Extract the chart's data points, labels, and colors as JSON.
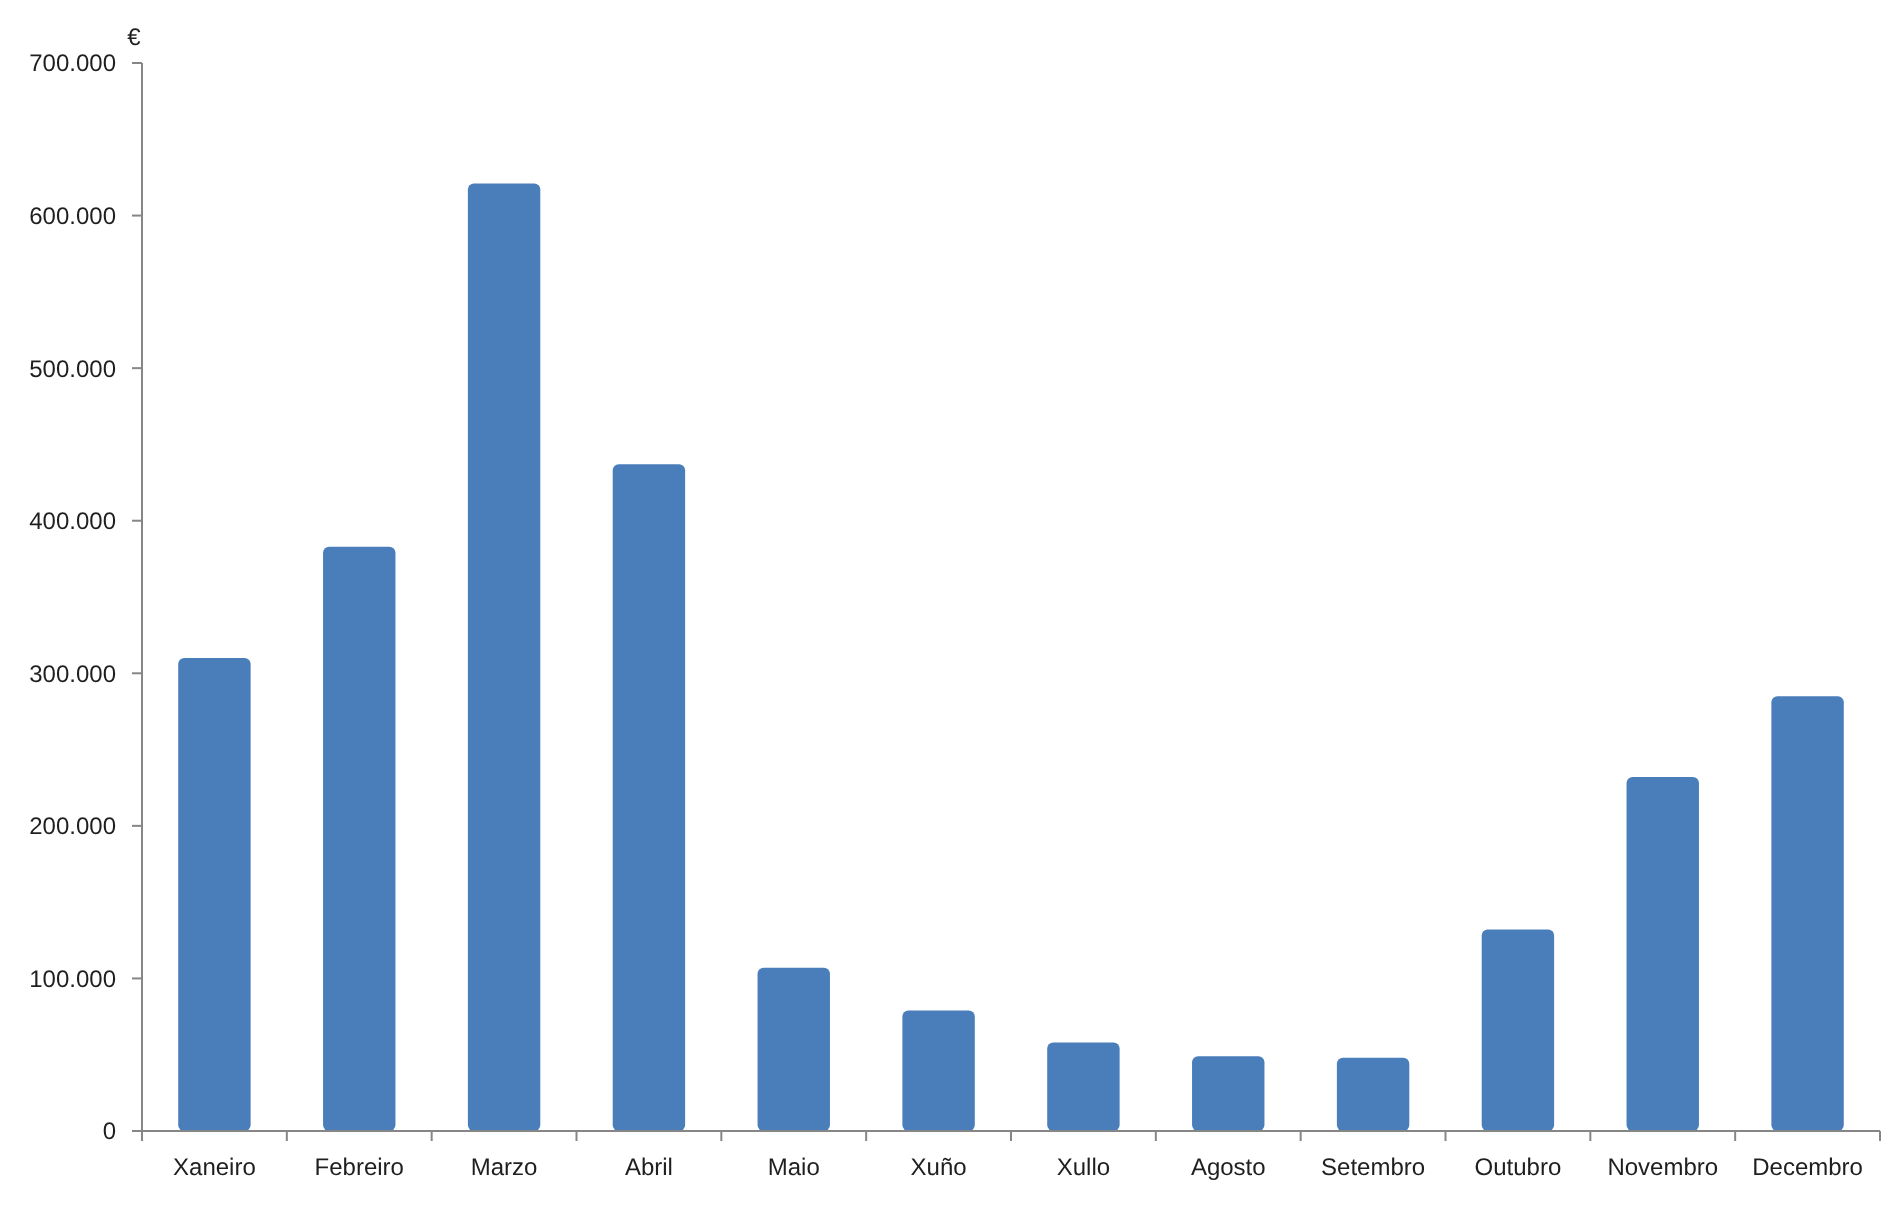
{
  "chart_data": {
    "type": "bar",
    "ylabel": "€",
    "categories": [
      "Xaneiro",
      "Febreiro",
      "Marzo",
      "Abril",
      "Maio",
      "Xuño",
      "Xullo",
      "Agosto",
      "Setembro",
      "Outubro",
      "Novembro",
      "Decembro"
    ],
    "values": [
      310000,
      383000,
      621000,
      437000,
      107000,
      79000,
      58000,
      49000,
      48000,
      132000,
      232000,
      285000
    ],
    "color": "#4a7ebb",
    "ylim": [
      0,
      700000
    ],
    "yticks": [
      {
        "value": 0,
        "label": "0"
      },
      {
        "value": 100000,
        "label": "100.000"
      },
      {
        "value": 200000,
        "label": "200.000"
      },
      {
        "value": 300000,
        "label": "300.000"
      },
      {
        "value": 400000,
        "label": "400.000"
      },
      {
        "value": 500000,
        "label": "500.000"
      },
      {
        "value": 600000,
        "label": "600.000"
      },
      {
        "value": 700000,
        "label": "700.000"
      }
    ],
    "grid": false
  }
}
